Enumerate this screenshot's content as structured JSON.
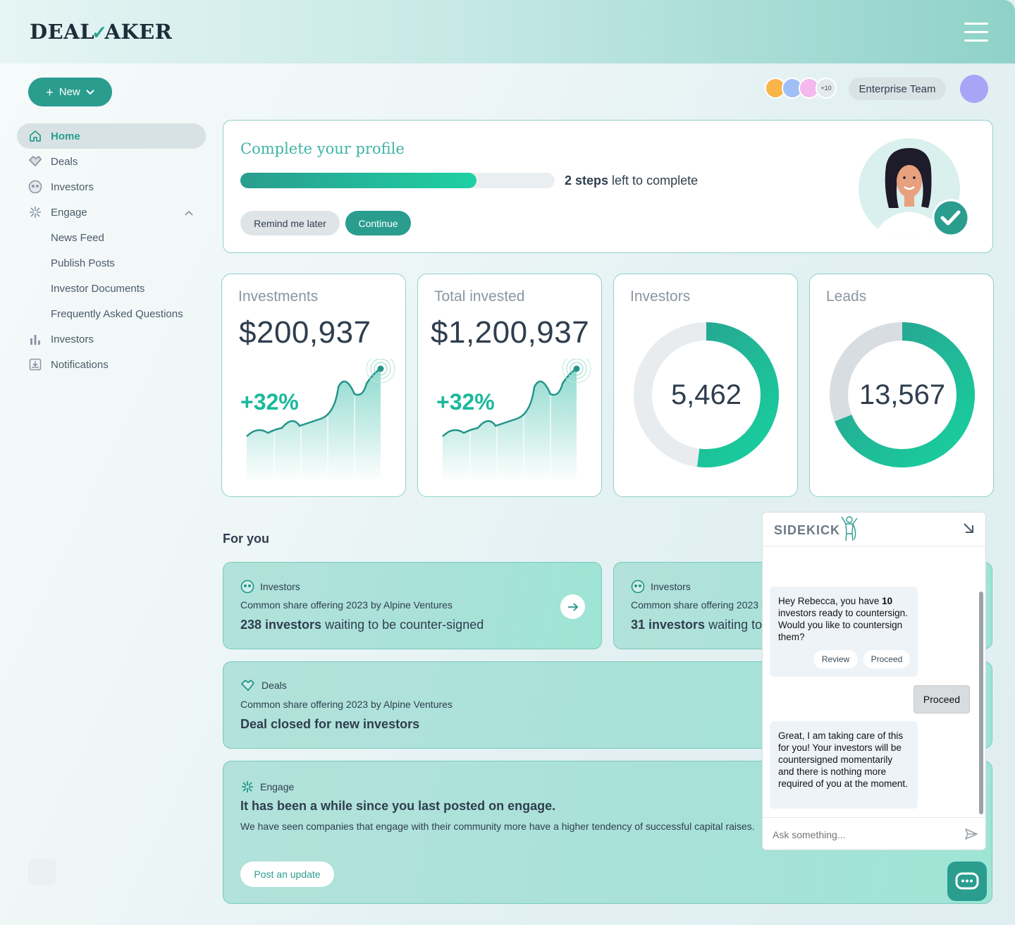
{
  "brand": {
    "logo_text_1": "DEAL",
    "logo_tick": "✓",
    "logo_text_2": "AKER"
  },
  "colors": {
    "accent": "#2a9d8f",
    "accent_light": "#1ed0a3",
    "card_border": "#8fd2c8",
    "user_avatar": "#a8a4f6"
  },
  "sidebar": {
    "new_label": "New",
    "items": [
      {
        "label": "Home",
        "icon": "home-icon",
        "active": true
      },
      {
        "label": "Deals",
        "icon": "handshake-icon"
      },
      {
        "label": "Investors",
        "icon": "investors-icon"
      },
      {
        "label": "Engage",
        "icon": "sparkle-icon",
        "expanded": true
      },
      {
        "label": "News Feed"
      },
      {
        "label": "Publish Posts"
      },
      {
        "label": "Investor Documents"
      },
      {
        "label": "Frequently Asked Questions"
      },
      {
        "label": "Investors",
        "icon": "bar-chart-icon"
      },
      {
        "label": "Notifications",
        "icon": "inbox-icon"
      }
    ]
  },
  "header": {
    "avatar_colors": [
      "#f9b54a",
      "#9fbff7",
      "#f5b8ef"
    ],
    "more_count": "+10",
    "team_label": "Enterprise Team"
  },
  "profile": {
    "title": "Complete your profile",
    "progress": 0.75,
    "steps_bold": "2 steps",
    "steps_rest": " left to complete",
    "remind_label": "Remind me later",
    "continue_label": "Continue"
  },
  "stats": [
    {
      "label": "Investments",
      "value": "$200,937",
      "change": "+32%"
    },
    {
      "label": "Total invested",
      "value": "$1,200,937",
      "change": "+32%"
    },
    {
      "label": "Investors",
      "value": "5,462",
      "fraction": 0.52
    },
    {
      "label": "Leads",
      "value": "13,567",
      "fraction": 0.69
    }
  ],
  "for_you": {
    "title": "For you",
    "cards": [
      {
        "category": "Investors",
        "subtitle": "Common share offering 2023 by Alpine Ventures",
        "main_bold": "238 investors",
        "main_rest": " waiting to be counter-signed"
      },
      {
        "category": "Investors",
        "subtitle": "Common share offering 2023 by Alpine Ventures",
        "main_bold": "31 investors",
        "main_rest": " waiting to be counter-signed"
      },
      {
        "category": "Deals",
        "subtitle": "Common share offering 2023 by Alpine Ventures",
        "main": "Deal closed for new investors"
      },
      {
        "category": "Engage",
        "headline": "It has been a while since you last posted on engage.",
        "body": "We have seen companies that engage with their community more have a higher tendency of successful capital raises.",
        "button": "Post an update"
      }
    ]
  },
  "sidekick": {
    "title": "SIDEKICK",
    "msg1_pre": "Hey Rebecca, you have ",
    "msg1_bold": "10",
    "msg1_post": " investors ready to countersign. Would you like to countersign them?",
    "chip_review": "Review",
    "chip_proceed": "Proceed",
    "user_reply": "Proceed",
    "msg2": "Great, I am taking care of this for you! Your investors will be countersigned momentarily and there is nothing more required of you at the moment.",
    "input_placeholder": "Ask something..."
  }
}
